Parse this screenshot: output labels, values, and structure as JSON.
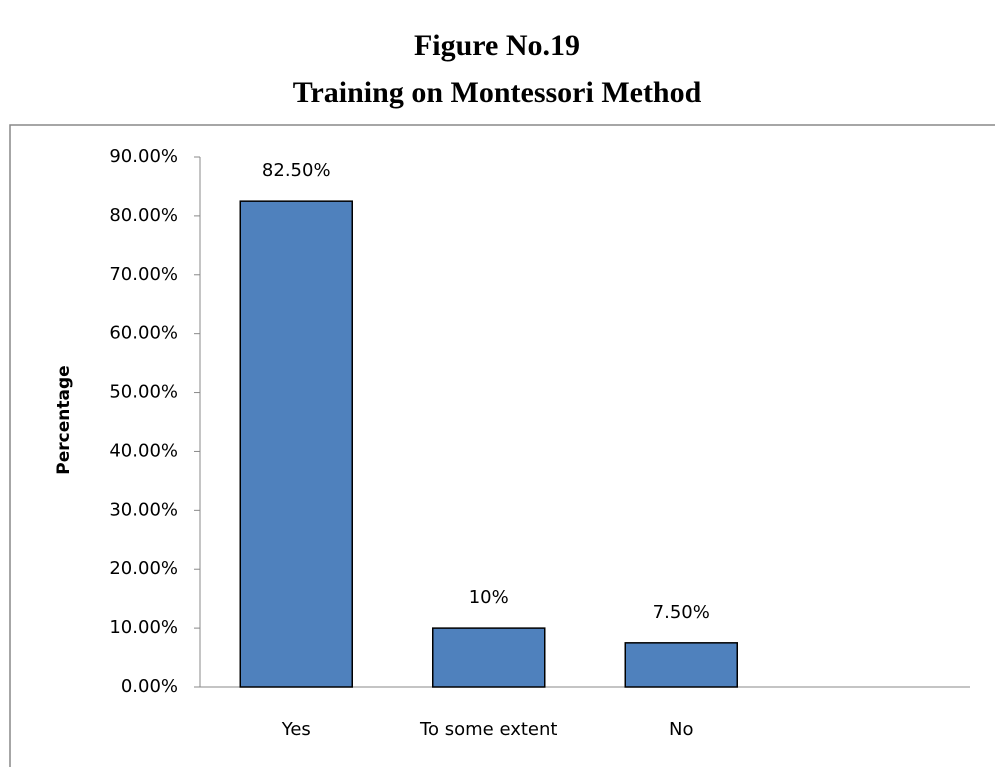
{
  "chart_data": {
    "type": "bar",
    "title": "Figure No.19",
    "subtitle": "Training on Montessori Method",
    "y_label": "Percentage",
    "categories": [
      "Yes",
      "To some extent",
      "No"
    ],
    "values": [
      82.5,
      10,
      7.5
    ],
    "value_labels": [
      "82.50%",
      "10%",
      "7.50%"
    ],
    "color": "#4f81bd",
    "ylim": [
      0,
      90
    ],
    "yticks": [
      {
        "value": 0,
        "label": "0.00%"
      },
      {
        "value": 10,
        "label": "10.00%"
      },
      {
        "value": 20,
        "label": "20.00%"
      },
      {
        "value": 30,
        "label": "30.00%"
      },
      {
        "value": 40,
        "label": "40.00%"
      },
      {
        "value": 50,
        "label": "50.00%"
      },
      {
        "value": 60,
        "label": "60.00%"
      },
      {
        "value": 70,
        "label": "70.00%"
      },
      {
        "value": 80,
        "label": "80.00%"
      },
      {
        "value": 90,
        "label": "90.00%"
      }
    ],
    "grid": false
  }
}
